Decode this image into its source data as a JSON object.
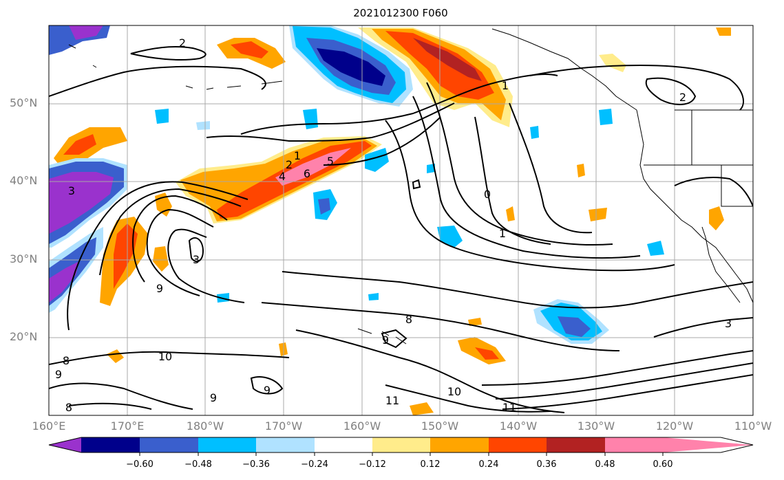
{
  "title": "2021012300 F060",
  "lat_labels": [
    "50°N",
    "40°N",
    "30°N",
    "20°N"
  ],
  "lon_labels": [
    "160°E",
    "170°E",
    "180°W",
    "170°W",
    "160°W",
    "150°W",
    "140°W",
    "130°W",
    "120°W",
    "110°W"
  ],
  "colorbar": {
    "labels": [
      "−0.60",
      "−0.48",
      "−0.36",
      "−0.24",
      "−0.12",
      "0.12",
      "0.24",
      "0.36",
      "0.48",
      "0.60"
    ],
    "colors": [
      "#9a32cd",
      "#00008b",
      "#3a5fcd",
      "#00bfff",
      "#b0e2ff",
      "#ffffff",
      "#ffec8b",
      "#ffa500",
      "#ff4500",
      "#b22222",
      "#ff82ab"
    ]
  },
  "contour_labels": [
    "2",
    "2",
    "1",
    "1",
    "2",
    "3",
    "6",
    "5",
    "4",
    "3",
    "9",
    "0",
    "1",
    "8",
    "9",
    "10",
    "9",
    "11",
    "10",
    "11",
    "3",
    "8",
    "9",
    "8",
    "9"
  ]
}
